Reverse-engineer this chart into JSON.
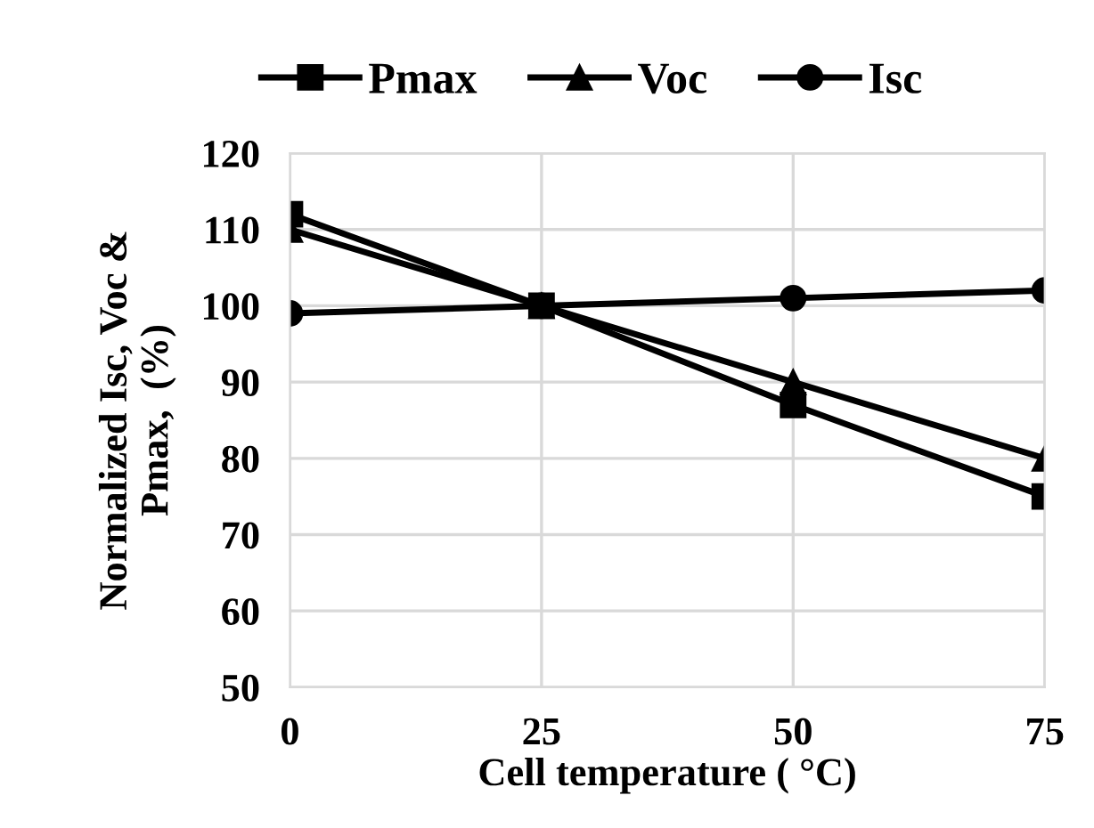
{
  "chart_data": {
    "type": "line",
    "xlabel": "Cell temperature ( °C)",
    "ylabel": "Normalized Isc, Voc &\nPmax,  (%)",
    "x": [
      0,
      25,
      50,
      75
    ],
    "series": [
      {
        "name": "Pmax",
        "color": "#000000",
        "marker": "square",
        "values": [
          112,
          100,
          87,
          75
        ]
      },
      {
        "name": "Voc",
        "color": "#000000",
        "marker": "triangle",
        "values": [
          110,
          100,
          90,
          80
        ]
      },
      {
        "name": "Isc",
        "color": "#000000",
        "marker": "circle",
        "values": [
          99,
          100,
          101,
          102
        ]
      }
    ],
    "xlim": [
      0,
      75
    ],
    "xticks": [
      0,
      25,
      50,
      75
    ],
    "ylim": [
      50,
      120
    ],
    "yticks": [
      50,
      60,
      70,
      80,
      90,
      100,
      110,
      120
    ],
    "grid": true,
    "legend": "top",
    "line_style": "solid"
  }
}
